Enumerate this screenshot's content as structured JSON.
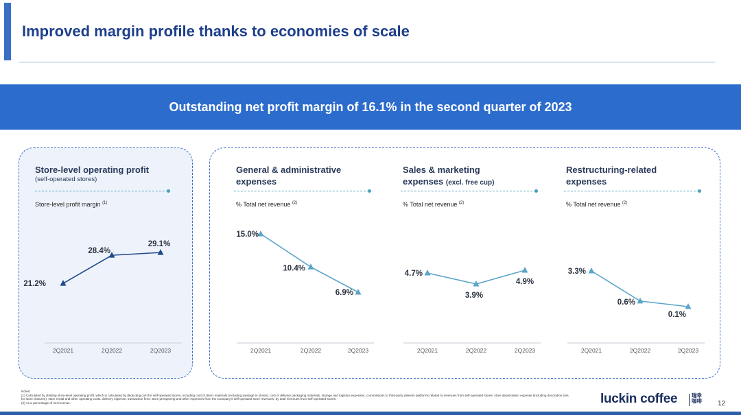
{
  "title": "Improved margin profile thanks to economies of scale",
  "banner": "Outstanding net profit margin of 16.1% in the second quarter of 2023",
  "colors": {
    "accent": "#3a6fc4",
    "banner": "#2c6ccd",
    "line_dark": "#1f4a8a",
    "line_light": "#5aa5c8",
    "panel_fill": "#eef3fb"
  },
  "charts": [
    {
      "title": "Store-level operating profit",
      "subtitle": "(self-operated stores)",
      "metric_label": "Store-level profit margin",
      "metric_note": "(1)",
      "categories": [
        "2Q2021",
        "2Q2022",
        "2Q2023"
      ],
      "values": [
        21.2,
        28.4,
        29.1
      ],
      "value_labels": [
        "21.2%",
        "28.4%",
        "29.1%"
      ]
    },
    {
      "title": "General & administrative",
      "title_line2": "expenses",
      "metric_label": "% Total net revenue",
      "metric_note": "(2)",
      "categories": [
        "2Q2021",
        "2Q2022",
        "2Q2023"
      ],
      "values": [
        15.0,
        10.4,
        6.9
      ],
      "value_labels": [
        "15.0%",
        "10.4%",
        "6.9%"
      ]
    },
    {
      "title": "Sales & marketing",
      "title_line2": "expenses",
      "title_line2_note": "(excl. free cup)",
      "metric_label": "% Total net revenue",
      "metric_note": "(2)",
      "categories": [
        "2Q2021",
        "2Q2022",
        "2Q2023"
      ],
      "values": [
        4.7,
        3.9,
        4.9
      ],
      "value_labels": [
        "4.7%",
        "3.9%",
        "4.9%"
      ]
    },
    {
      "title": "Restructuring-related",
      "title_line2": "expenses",
      "metric_label": "% Total net revenue",
      "metric_note": "(2)",
      "categories": [
        "2Q2021",
        "2Q2022",
        "2Q2023"
      ],
      "values": [
        3.3,
        0.6,
        0.1
      ],
      "value_labels": [
        "3.3%",
        "0.6%",
        "0.1%"
      ]
    }
  ],
  "chart_data": [
    {
      "type": "line",
      "title": "Store-level operating profit (self-operated stores)",
      "ylabel": "Store-level profit margin (%)",
      "categories": [
        "2Q2021",
        "2Q2022",
        "2Q2023"
      ],
      "values": [
        21.2,
        28.4,
        29.1
      ]
    },
    {
      "type": "line",
      "title": "General & administrative expenses",
      "ylabel": "% Total net revenue",
      "categories": [
        "2Q2021",
        "2Q2022",
        "2Q2023"
      ],
      "values": [
        15.0,
        10.4,
        6.9
      ]
    },
    {
      "type": "line",
      "title": "Sales & marketing expenses (excl. free cup)",
      "ylabel": "% Total net revenue",
      "categories": [
        "2Q2021",
        "2Q2022",
        "2Q2023"
      ],
      "values": [
        4.7,
        3.9,
        4.9
      ]
    },
    {
      "type": "line",
      "title": "Restructuring-related expenses",
      "ylabel": "% Total net revenue",
      "categories": [
        "2Q2021",
        "2Q2022",
        "2Q2023"
      ],
      "values": [
        3.3,
        0.6,
        0.1
      ]
    }
  ],
  "notes": {
    "heading": "Notes:",
    "items": [
      "(1) Calculated by dividing store-level operating profit, which is calculated by deducting cost for self-operated stores, including cost of direct materials (including wastage in stores), cost of delivery packaging materials, storage and logistics expenses, commissions to third-party delivery platforms related to revenues from self-operated stores, store depreciation expense (including decoration loss for store closures), store rental and other operating costs, delivery expense, transaction fees, store preopening and other expenses from the Company's self-operated store revenues, by total revenues from self-operated stores.",
      "(2) As a percentage of net revenue."
    ]
  },
  "brand": {
    "name": "luckin coffee",
    "chinese": "瑞幸咖啡"
  },
  "page_number": "12"
}
